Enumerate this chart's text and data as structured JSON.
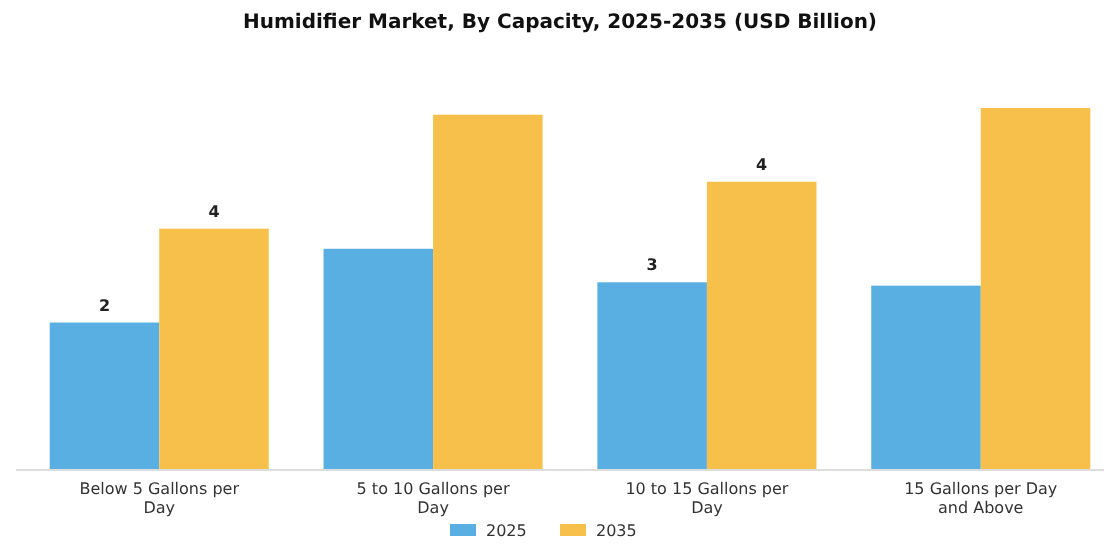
{
  "chart_data": {
    "type": "bar",
    "title": "Humidifier Market, By Capacity, 2025-2035 (USD Billion)",
    "categories": [
      "Below 5 Gallons per Day",
      "5 to 10 Gallons per Day",
      "10 to 15 Gallons per Day",
      "15 Gallons per Day and Above"
    ],
    "series": [
      {
        "name": "2025",
        "color": "#5aafe2",
        "values": [
          2.2,
          3.3,
          2.8,
          2.75
        ],
        "value_labels": [
          "2",
          null,
          "3",
          null
        ]
      },
      {
        "name": "2035",
        "color": "#f7c04a",
        "values": [
          3.6,
          5.3,
          4.3,
          5.4
        ],
        "value_labels": [
          "4",
          null,
          "4",
          null
        ]
      }
    ],
    "legend": "bottom"
  }
}
